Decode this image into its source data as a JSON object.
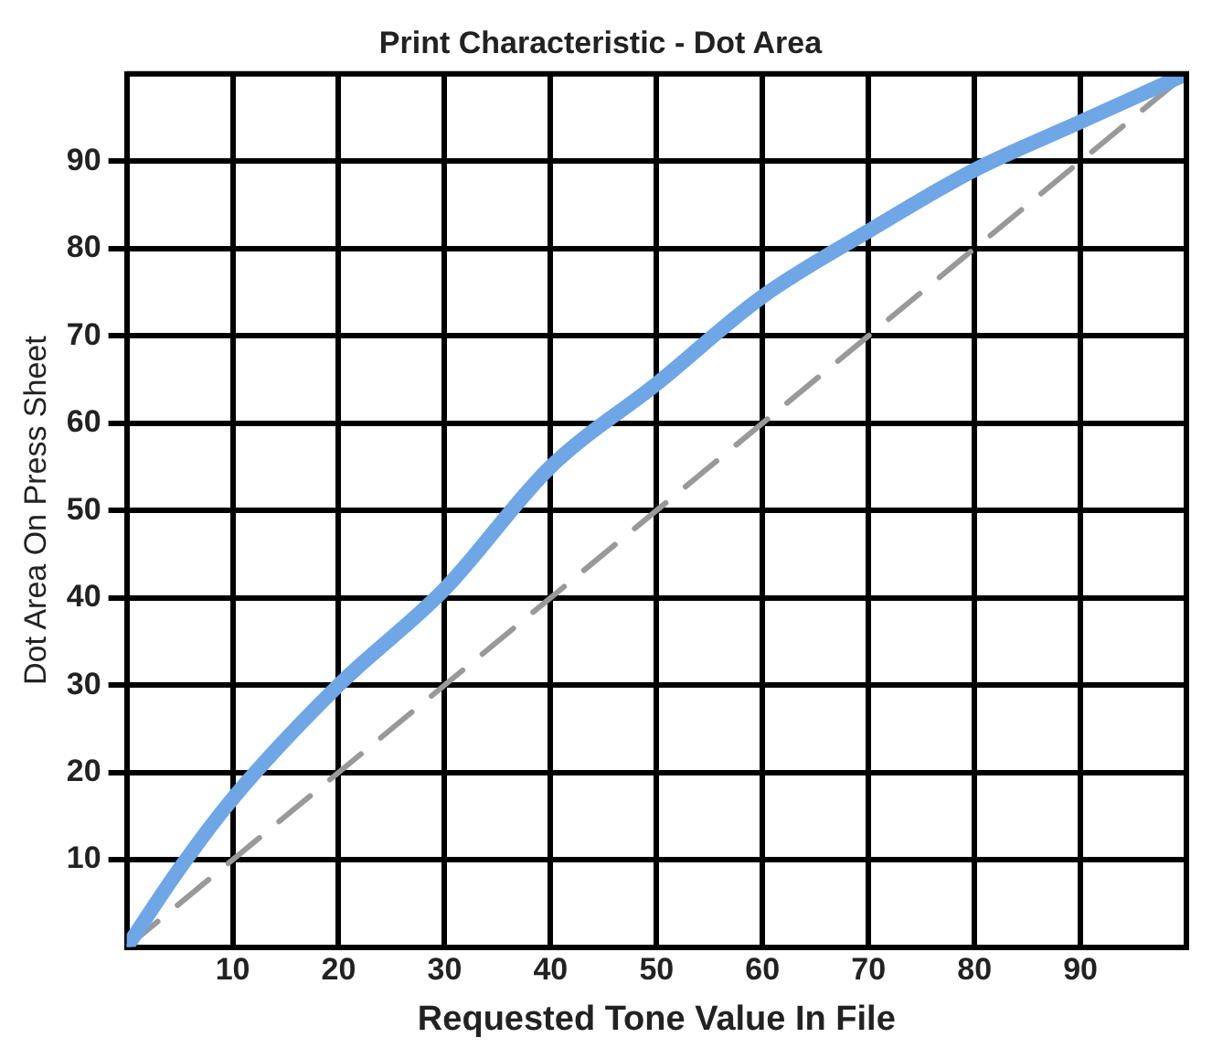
{
  "chart_data": {
    "type": "line",
    "title": "Print Characteristic - Dot Area",
    "xlabel": "Requested Tone Value In File",
    "ylabel": "Dot Area On Press Sheet",
    "xlim": [
      0,
      100
    ],
    "ylim": [
      0,
      100
    ],
    "xticks": [
      10,
      20,
      30,
      40,
      50,
      60,
      70,
      80,
      90
    ],
    "yticks": [
      10,
      20,
      30,
      40,
      50,
      60,
      70,
      80,
      90
    ],
    "grid": true,
    "legend": false,
    "marker": "none",
    "series": [
      {
        "color": "#6ea6e6",
        "line_style": "solid",
        "x": [
          0,
          5,
          10,
          20,
          30,
          40,
          50,
          60,
          70,
          80,
          90,
          100
        ],
        "values": [
          0,
          9,
          17,
          30,
          41,
          55,
          64.5,
          74.5,
          82,
          89,
          94.5,
          100
        ]
      },
      {
        "color": "#999999",
        "line_style": "dashed",
        "x": [
          0,
          100
        ],
        "values": [
          0,
          100
        ]
      }
    ]
  }
}
